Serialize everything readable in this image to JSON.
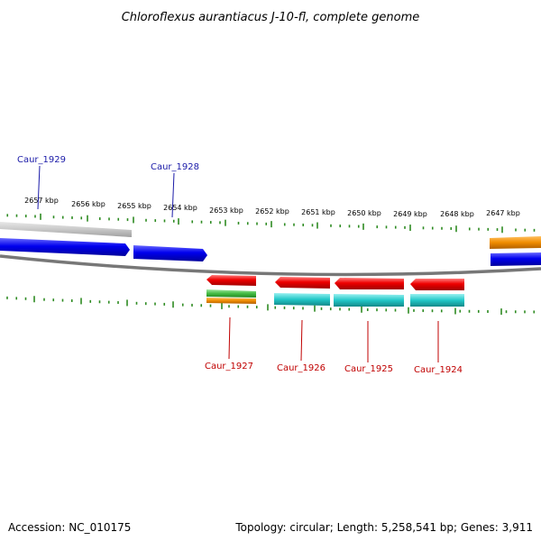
{
  "title": "Chloroflexus aurantiacus J-10-fl, complete genome",
  "ruler": {
    "labels": [
      "2657 kbp",
      "2656 kbp",
      "2655 kbp",
      "2654 kbp",
      "2653 kbp",
      "2652 kbp",
      "2651 kbp",
      "2650 kbp",
      "2649 kbp",
      "2648 kbp",
      "2647 kbp"
    ],
    "color": "#2e8b22"
  },
  "genes": [
    {
      "id": "Caur_1929",
      "strand": "forward",
      "color": "#0000ee",
      "label_color": "#1a1aa8"
    },
    {
      "id": "Caur_1928",
      "strand": "forward",
      "color": "#0000ee",
      "label_color": "#1a1aa8"
    },
    {
      "id": "Caur_1927",
      "strand": "reverse",
      "color": "#ee0000",
      "label_color": "#c00000"
    },
    {
      "id": "Caur_1926",
      "strand": "reverse",
      "color": "#ee0000",
      "label_color": "#c00000"
    },
    {
      "id": "Caur_1925",
      "strand": "reverse",
      "color": "#ee0000",
      "label_color": "#c00000"
    },
    {
      "id": "Caur_1924",
      "strand": "reverse",
      "color": "#ee0000",
      "label_color": "#c00000"
    }
  ],
  "feature_colors": {
    "cds_forward": "#0000ee",
    "cds_reverse": "#ee0000",
    "cog_cyan": "#22c8c8",
    "cog_orange": "#f08c00",
    "cog_green": "#44bb44",
    "backbone": "#777777",
    "faded": "#c8c8c8"
  },
  "footer": {
    "accession": "Accession: NC_010175",
    "summary": "Topology: circular; Length: 5,258,541 bp; Genes: 3,911"
  }
}
